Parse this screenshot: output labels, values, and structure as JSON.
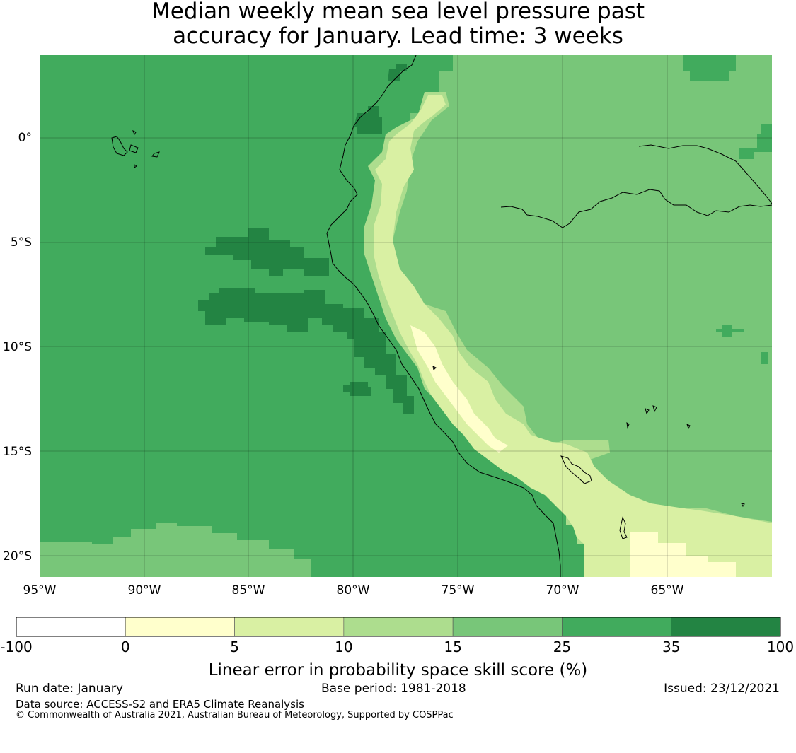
{
  "title": {
    "line1": "Median weekly mean sea level pressure past",
    "line2": "accuracy for January. Lead time: 3 weeks"
  },
  "map": {
    "lon_labels": [
      "95°W",
      "90°W",
      "85°W",
      "80°W",
      "75°W",
      "70°W",
      "65°W"
    ],
    "lat_labels": [
      "0°",
      "5°S",
      "10°S",
      "15°S",
      "20°S"
    ]
  },
  "colorbar": {
    "bounds": [
      "-100",
      "0",
      "5",
      "10",
      "15",
      "25",
      "35",
      "100"
    ],
    "colors": [
      "#ffffff",
      "#ffffcc",
      "#d9f0a3",
      "#addd8e",
      "#78c679",
      "#41ab5d",
      "#238443"
    ],
    "label": "Linear error in probability space skill score (%)"
  },
  "footer": {
    "run_date": "Run date: January",
    "base_period": "Base period: 1981-2018",
    "issued": "Issued: 23/12/2021",
    "data_source": "Data source: ACCESS-S2 and ERA5 Climate Reanalysis",
    "copyright": "© Commonwealth of Australia 2021, Australian Bureau of Meteorology, Supported by COSPPac"
  }
}
